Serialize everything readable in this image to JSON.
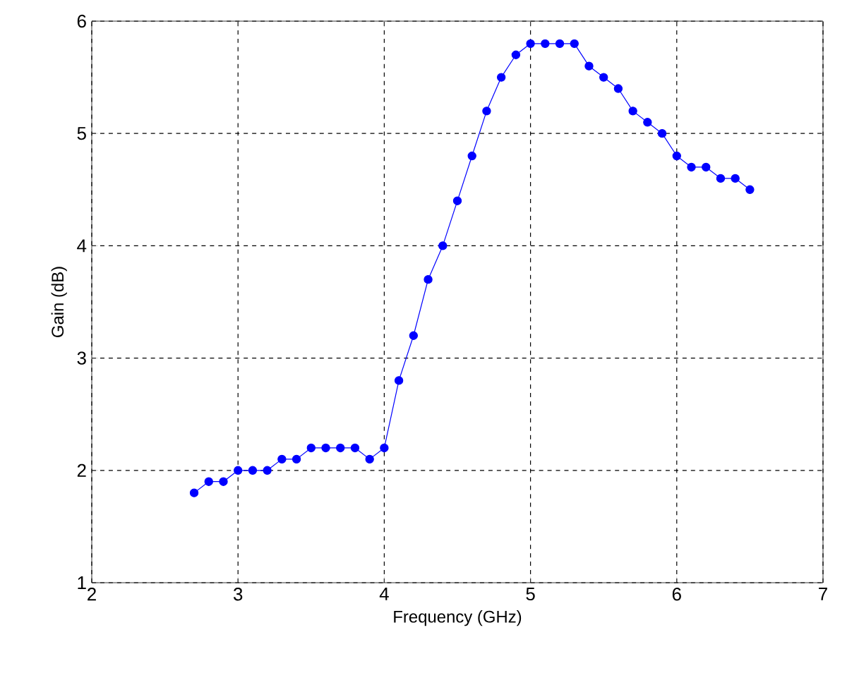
{
  "chart_data": {
    "type": "line",
    "xlabel": "Frequency (GHz)",
    "ylabel": "Gain (dB)",
    "x": [
      2.7,
      2.8,
      2.9,
      3.0,
      3.1,
      3.2,
      3.3,
      3.4,
      3.5,
      3.6,
      3.7,
      3.8,
      3.9,
      4.0,
      4.1,
      4.2,
      4.3,
      4.4,
      4.5,
      4.6,
      4.7,
      4.8,
      4.9,
      5.0,
      5.1,
      5.2,
      5.3,
      5.4,
      5.5,
      5.6,
      5.7,
      5.8,
      5.9,
      6.0,
      6.1,
      6.2,
      6.3,
      6.4,
      6.5
    ],
    "series": [
      {
        "color": "#0000ff",
        "values": [
          1.8,
          1.9,
          1.9,
          2.0,
          2.0,
          2.0,
          2.1,
          2.1,
          2.2,
          2.2,
          2.2,
          2.2,
          2.1,
          2.2,
          2.8,
          3.2,
          3.7,
          4.0,
          4.4,
          4.8,
          5.2,
          5.5,
          5.7,
          5.8,
          5.8,
          5.8,
          5.8,
          5.6,
          5.5,
          5.4,
          5.2,
          5.1,
          5.0,
          4.8,
          4.7,
          4.7,
          4.6,
          4.6,
          4.5
        ]
      }
    ],
    "xlim": [
      2,
      7
    ],
    "ylim": [
      1,
      6
    ],
    "xticks": [
      2,
      3,
      4,
      5,
      6,
      7
    ],
    "yticks": [
      1,
      2,
      3,
      4,
      5,
      6
    ],
    "grid": true,
    "marker": "circle",
    "line_style": "solid"
  }
}
